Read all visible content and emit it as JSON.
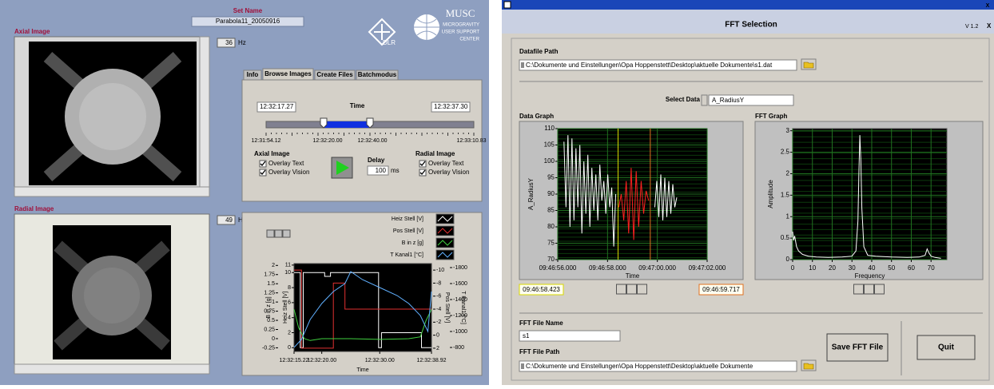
{
  "left_panel": {
    "set_name_label": "Set Name",
    "set_name": "Parabola11_20050916",
    "axial_label": "Axial Image",
    "radial_label": "Radial Image",
    "axial_rate": "36",
    "radial_rate": "49",
    "rate_unit": "Hz",
    "logos": {
      "dlr": "DLR",
      "musc": "MUSC",
      "musc_sub": [
        "MICROGRAVITY",
        "USER SUPPORT",
        "CENTER"
      ]
    },
    "tabs": [
      "Info",
      "Browse Images",
      "Create Files",
      "Batchmodus"
    ],
    "browse": {
      "start": "12:32:17.27",
      "time_label": "Time",
      "end": "12:32:37.30",
      "scale": [
        "12:31:54.12",
        "12:32:20.00",
        "12:32:40.00",
        "12:33:10.83"
      ],
      "overlay_text": "Overlay Text",
      "overlay_vision": "Overlay Vision",
      "delay_label": "Delay",
      "delay": "100",
      "delay_unit": "ms"
    }
  },
  "fft_window": {
    "title": "FFT Selection",
    "version": "V 1.2",
    "close": "X",
    "datafile_label": "Datafile Path",
    "datafile_path": "C:\\Dokumente und Einstellungen\\Opa Hoppenstett\\Desktop\\aktuelle Dokumente\\s1.dat",
    "select_label": "Select Data",
    "select_value": "A_RadiusY",
    "data_graph_label": "Data Graph",
    "fft_graph_label": "FFT Graph",
    "fft_name_label": "FFT File Name",
    "fft_name": "s1",
    "fft_path_label": "FFT File Path",
    "fft_path": "C:\\Dokumente und Einstellungen\\Opa Hoppenstett\\Desktop\\aktuelle Dokumente",
    "save_button": "Save FFT File",
    "quit_button": "Quit"
  },
  "chart_data": [
    {
      "type": "line",
      "x_label": "Time",
      "xlim": [
        15.22,
        38.92
      ],
      "xticks": [
        {
          "value": 15.22,
          "label": "12:32:15.22"
        },
        {
          "value": 20,
          "label": "12:32:20.00"
        },
        {
          "value": 30,
          "label": "12:32:30.00"
        },
        {
          "value": 38.92,
          "label": "12:32:38.92"
        }
      ],
      "ylim": [
        -0.35,
        2.05
      ],
      "yticks": [
        -0.25,
        0,
        0.25,
        0.5,
        0.75,
        1,
        1.25,
        1.5,
        1.75,
        2
      ],
      "y2lim": [
        -0.5,
        11.2
      ],
      "y2ticks": [
        0,
        2,
        4,
        6,
        8,
        10,
        11
      ],
      "y3lim": [
        2.5,
        -11
      ],
      "y3ticks": [
        -10,
        -8,
        -6,
        -4,
        -2,
        0,
        2
      ],
      "y4lim": [
        -750,
        -1850
      ],
      "y4ticks": [
        -1800,
        -1600,
        -1400,
        -1200,
        -1000,
        -800
      ],
      "series": [
        {
          "name": "Heiz Stell [V]",
          "color": "#ffffff",
          "axis": "y2",
          "x": [
            15.22,
            16.3,
            16.3,
            16.8,
            16.8,
            20.5,
            20.5,
            21.5,
            21.5,
            29.8,
            29.8,
            30.3,
            30.3,
            37.2,
            37.2,
            38.92
          ],
          "values": [
            10,
            10,
            0,
            0,
            10,
            10,
            9.5,
            9.5,
            10,
            10,
            0,
            0,
            2,
            2,
            0,
            0
          ]
        },
        {
          "name": "Pos Stell [V]",
          "color": "#e03030",
          "axis": "y3",
          "x": [
            15.22,
            16.5,
            16.5,
            22,
            22,
            24,
            24,
            38.92
          ],
          "values": [
            -10,
            -10,
            2,
            2,
            -8,
            -8,
            -4,
            -4
          ]
        },
        {
          "name": "B in z [g]",
          "color": "#40d040",
          "axis": "y",
          "x": [
            15.22,
            16,
            17,
            18,
            20,
            25,
            30,
            35,
            37,
            38,
            38.92
          ],
          "values": [
            0.8,
            0.3,
            0,
            -0.05,
            0,
            0,
            -0.02,
            0,
            0.05,
            0.5,
            0.8
          ]
        },
        {
          "name": "T Kanal1 [°C]",
          "color": "#60b0ff",
          "axis": "y4",
          "x": [
            15.22,
            16.5,
            18,
            20,
            22,
            24,
            25,
            27,
            30,
            33,
            35,
            37,
            38.3,
            38.92
          ],
          "values": [
            -800,
            -900,
            -1150,
            -1350,
            -1500,
            -1600,
            -1750,
            -1650,
            -1550,
            -1450,
            -1350,
            -1200,
            -1000,
            -1500
          ]
        }
      ]
    },
    {
      "type": "line",
      "x_label": "Time",
      "y_label": "A_RadiusY",
      "xlim": [
        56,
        62
      ],
      "xticks": [
        {
          "value": 56,
          "label": "09:46:56.000"
        },
        {
          "value": 58,
          "label": "09:46:58.000"
        },
        {
          "value": 60,
          "label": "09:47:00.000"
        },
        {
          "value": 62,
          "label": "09:47:02.000"
        }
      ],
      "ylim": [
        70,
        110
      ],
      "yticks": [
        70,
        75,
        80,
        85,
        90,
        95,
        100,
        105,
        110
      ],
      "grid": true,
      "cursors": [
        {
          "value": 58.423,
          "label": "09:46:58.423",
          "color": "#d8d800"
        },
        {
          "value": 59.717,
          "label": "09:46:59.717",
          "color": "#e07020"
        }
      ],
      "series": [
        {
          "color": "#ffffff",
          "x": [
            56.25,
            56.33,
            56.41,
            56.49,
            56.57,
            56.65,
            56.73,
            56.81,
            56.89,
            56.97,
            57.05,
            57.13,
            57.21,
            57.29,
            57.37,
            57.45,
            57.53,
            57.61,
            57.69,
            57.77,
            57.85,
            57.93,
            58.01,
            58.09,
            58.17,
            58.25,
            58.33
          ],
          "values": [
            106,
            86,
            108,
            80,
            107,
            82,
            104,
            86,
            105,
            78,
            100,
            84,
            102,
            80,
            98,
            85,
            96,
            82,
            99,
            88,
            94,
            84,
            96,
            86,
            92,
            74,
            90
          ]
        },
        {
          "color": "#ff2020",
          "x": [
            58.45,
            58.55,
            58.65,
            58.75,
            58.85,
            58.95,
            59.05,
            59.15,
            59.25,
            59.35,
            59.45,
            59.55,
            59.65
          ],
          "values": [
            86,
            90,
            82,
            94,
            78,
            98,
            76,
            97,
            80,
            94,
            84,
            91,
            88
          ]
        },
        {
          "color": "#ffffff",
          "x": [
            59.9,
            59.98,
            60.06,
            60.14,
            60.22,
            60.3,
            60.38,
            60.46,
            60.54,
            60.62,
            60.7,
            60.78
          ],
          "values": [
            86,
            94,
            83,
            96,
            82,
            95,
            83,
            94,
            84,
            93,
            86,
            89
          ]
        }
      ]
    },
    {
      "type": "line",
      "x_label": "Frequency",
      "y_label": "Amplitude",
      "xlim": [
        0,
        78
      ],
      "xticks": [
        0,
        10,
        20,
        30,
        40,
        50,
        60,
        70
      ],
      "ylim": [
        0,
        3.05
      ],
      "yticks": [
        0,
        0.5,
        1,
        1.5,
        2,
        2.5,
        3
      ],
      "grid": true,
      "series": [
        {
          "color": "#ffffff",
          "x": [
            0,
            0.5,
            1,
            2,
            3,
            5,
            8,
            12,
            18,
            25,
            30,
            32,
            33,
            33.5,
            34,
            34.5,
            35,
            36,
            38,
            42,
            50,
            58,
            64,
            67,
            68,
            69,
            70,
            72,
            75
          ],
          "values": [
            0.65,
            0.45,
            0.55,
            0.3,
            0.2,
            0.12,
            0.08,
            0.06,
            0.05,
            0.06,
            0.08,
            0.2,
            0.9,
            2.0,
            2.9,
            2.3,
            1.2,
            0.3,
            0.1,
            0.08,
            0.06,
            0.05,
            0.06,
            0.1,
            0.25,
            0.15,
            0.08,
            0.05,
            0.03
          ]
        }
      ]
    }
  ]
}
